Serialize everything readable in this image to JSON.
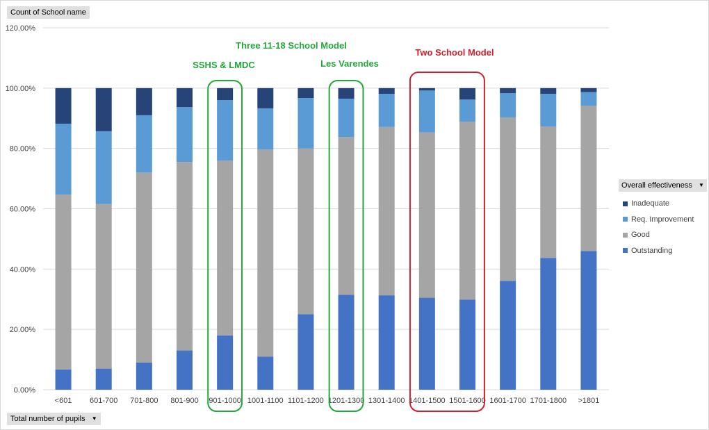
{
  "field_buttons": {
    "values": "Count of School name",
    "axis": "Total number of pupils",
    "legend": "Overall effectiveness"
  },
  "chart_data": {
    "type": "bar",
    "stacked": "percent",
    "categories": [
      "<601",
      "601-700",
      "701-800",
      "801-900",
      "901-1000",
      "1001-1100",
      "1101-1200",
      "1201-1300",
      "1301-1400",
      "1401-1500",
      "1501-1600",
      "1601-1700",
      "1701-1800",
      ">1801"
    ],
    "series": [
      {
        "name": "Outstanding",
        "color": "#4472c4",
        "values": [
          6.7,
          7.0,
          9.0,
          13.0,
          18.0,
          11.0,
          25.0,
          31.5,
          31.3,
          30.5,
          29.9,
          36.1,
          43.7,
          46.0
        ]
      },
      {
        "name": "Good",
        "color": "#a5a5a5",
        "values": [
          58.0,
          54.6,
          63.0,
          62.5,
          58.0,
          68.7,
          55.0,
          52.3,
          55.8,
          54.8,
          59.0,
          54.2,
          43.6,
          48.2
        ]
      },
      {
        "name": "Req. Improvement",
        "color": "#5b9bd5",
        "values": [
          23.5,
          24.1,
          19.0,
          18.2,
          20.0,
          13.6,
          16.7,
          12.7,
          11.0,
          13.9,
          7.3,
          8.0,
          10.8,
          4.5
        ]
      },
      {
        "name": "Inadequate",
        "color": "#264478",
        "values": [
          11.8,
          14.3,
          9.0,
          6.3,
          4.0,
          6.7,
          3.3,
          3.5,
          1.9,
          0.8,
          3.8,
          1.7,
          1.9,
          1.3
        ]
      }
    ],
    "legend_order": [
      "Inadequate",
      "Req. Improvement",
      "Good",
      "Outstanding"
    ],
    "ylim": [
      0,
      120
    ],
    "yticks": [
      "0.00%",
      "20.00%",
      "40.00%",
      "60.00%",
      "80.00%",
      "100.00%",
      "120.00%"
    ],
    "grid": true,
    "legend_position": "right",
    "annotations": [
      {
        "text": "Three 11-18 School Model",
        "color": "#22a83a"
      },
      {
        "text": "SSHS & LMDC",
        "color": "#22a83a",
        "box_categories": [
          "901-1000"
        ]
      },
      {
        "text": "Les Varendes",
        "color": "#22a83a",
        "box_categories": [
          "1201-1300"
        ]
      },
      {
        "text": "Two School Model",
        "color": "#d0202e",
        "box_categories": [
          "1401-1500",
          "1501-1600"
        ]
      }
    ]
  }
}
